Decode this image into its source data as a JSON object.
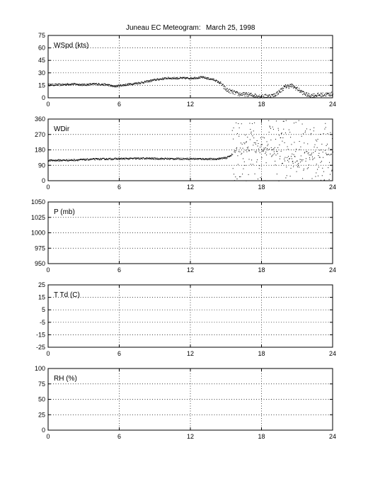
{
  "title": "Juneau EC Meteogram:",
  "date": "March 25, 1998",
  "chart_data": [
    {
      "type": "scatter",
      "label": "WSpd (kts)",
      "xlim": [
        0,
        24
      ],
      "ylim": [
        0,
        75
      ],
      "xticks": [
        0,
        6,
        12,
        18,
        24
      ],
      "yticks": [
        0,
        15,
        30,
        45,
        60,
        75
      ],
      "grid": true,
      "trace": [
        [
          0,
          16
        ],
        [
          1,
          16
        ],
        [
          2,
          17
        ],
        [
          3,
          16
        ],
        [
          4,
          17
        ],
        [
          5,
          16
        ],
        [
          5.5,
          14
        ],
        [
          6,
          15
        ],
        [
          7,
          17
        ],
        [
          8,
          19
        ],
        [
          9,
          22
        ],
        [
          10,
          24
        ],
        [
          11,
          24
        ],
        [
          12,
          24
        ],
        [
          13,
          25
        ],
        [
          14,
          22
        ],
        [
          14.5,
          18
        ],
        [
          15,
          10
        ],
        [
          16,
          5
        ],
        [
          17,
          4
        ],
        [
          18,
          2
        ],
        [
          19,
          3
        ],
        [
          19.5,
          8
        ],
        [
          20,
          14
        ],
        [
          20.5,
          15
        ],
        [
          21,
          11
        ],
        [
          21.5,
          6
        ],
        [
          22,
          3
        ],
        [
          23,
          4
        ],
        [
          24,
          5
        ]
      ]
    },
    {
      "type": "scatter",
      "label": "WDir",
      "xlim": [
        0,
        24
      ],
      "ylim": [
        0,
        360
      ],
      "xticks": [
        0,
        6,
        12,
        18,
        24
      ],
      "yticks": [
        0,
        90,
        180,
        270,
        360
      ],
      "grid": true,
      "trace": [
        [
          0,
          120
        ],
        [
          2,
          122
        ],
        [
          4,
          128
        ],
        [
          6,
          130
        ],
        [
          8,
          132
        ],
        [
          10,
          130
        ],
        [
          12,
          130
        ],
        [
          14,
          128
        ],
        [
          15,
          135
        ],
        [
          15.5,
          155
        ],
        [
          16,
          180
        ],
        [
          17,
          200
        ],
        [
          18,
          190
        ],
        [
          19,
          170
        ],
        [
          20,
          140
        ],
        [
          21,
          130
        ],
        [
          22,
          150
        ],
        [
          23,
          160
        ],
        [
          24,
          165
        ]
      ]
    },
    {
      "type": "scatter",
      "label": "P (mb)",
      "xlim": [
        0,
        24
      ],
      "ylim": [
        950,
        1050
      ],
      "xticks": [
        0,
        6,
        12,
        18,
        24
      ],
      "yticks": [
        950,
        975,
        1000,
        1025,
        1050
      ],
      "grid": true,
      "trace": []
    },
    {
      "type": "scatter",
      "label": "T Td (C)",
      "xlim": [
        0,
        24
      ],
      "ylim": [
        -25,
        25
      ],
      "xticks": [
        0,
        6,
        12,
        18,
        24
      ],
      "yticks": [
        -25,
        -15,
        -5,
        5,
        15,
        25
      ],
      "ytick_labels": [
        "-25",
        "-15",
        "-5",
        "5",
        "15",
        "25"
      ],
      "grid": true,
      "trace": []
    },
    {
      "type": "scatter",
      "label": "RH (%)",
      "xlim": [
        0,
        24
      ],
      "ylim": [
        0,
        100
      ],
      "xticks": [
        0,
        6,
        12,
        18,
        24
      ],
      "yticks": [
        0,
        25,
        50,
        75,
        100
      ],
      "grid": true,
      "trace": []
    }
  ]
}
